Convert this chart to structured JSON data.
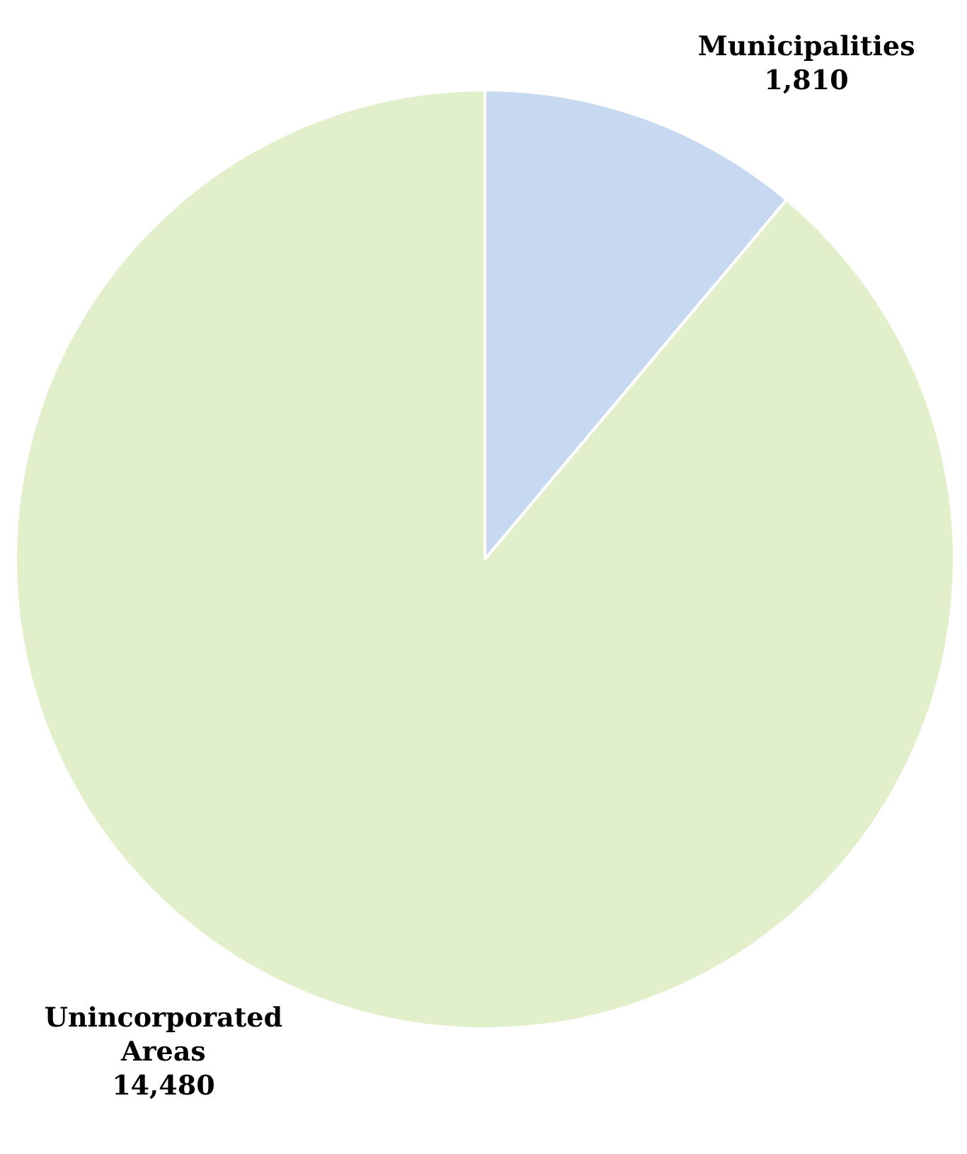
{
  "chart_data": {
    "type": "pie",
    "categories": [
      "Municipalities",
      "Unincorporated Areas"
    ],
    "values": [
      1810,
      14480
    ],
    "colors": [
      "#c6d9f1",
      "#e2efcb"
    ],
    "value_labels": [
      "1,810",
      "14,480"
    ],
    "legend": false
  }
}
